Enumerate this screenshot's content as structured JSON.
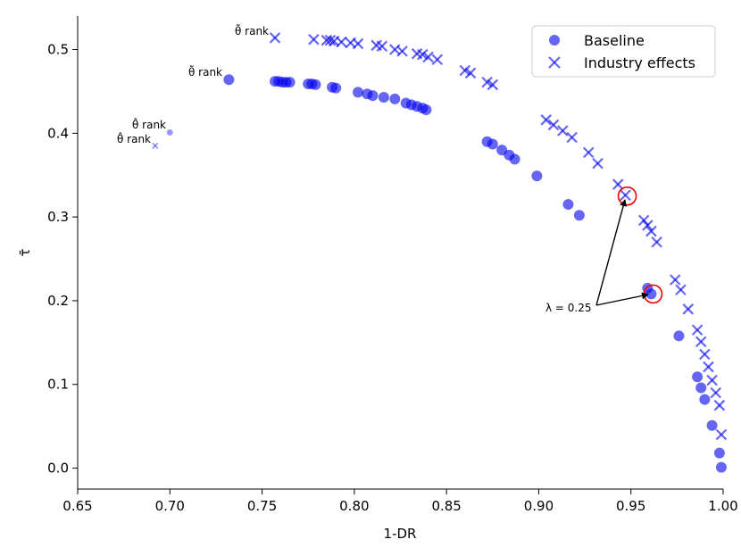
{
  "chart_data": {
    "type": "scatter",
    "xlabel": "1-DR",
    "ylabel": "τ̄",
    "xlim": [
      0.65,
      1.0
    ],
    "ylim": [
      -0.025,
      0.54
    ],
    "xticks": [
      "0.65",
      "0.70",
      "0.75",
      "0.80",
      "0.85",
      "0.90",
      "0.95",
      "1.00"
    ],
    "xtick_values": [
      0.65,
      0.7,
      0.75,
      0.8,
      0.85,
      0.9,
      0.95,
      1.0
    ],
    "yticks": [
      "0.0",
      "0.1",
      "0.2",
      "0.3",
      "0.4",
      "0.5"
    ],
    "ytick_values": [
      0.0,
      0.1,
      0.2,
      0.3,
      0.4,
      0.5
    ],
    "legend_position": "top-right",
    "colors": {
      "marker": "#0000ee",
      "highlight": "#ee0000"
    },
    "series": [
      {
        "name": "Baseline",
        "marker": "circle",
        "points": [
          [
            0.732,
            0.464
          ],
          [
            0.757,
            0.462
          ],
          [
            0.759,
            0.462
          ],
          [
            0.761,
            0.461
          ],
          [
            0.763,
            0.461
          ],
          [
            0.765,
            0.461
          ],
          [
            0.775,
            0.459
          ],
          [
            0.777,
            0.459
          ],
          [
            0.779,
            0.458
          ],
          [
            0.788,
            0.455
          ],
          [
            0.79,
            0.454
          ],
          [
            0.802,
            0.449
          ],
          [
            0.807,
            0.447
          ],
          [
            0.81,
            0.445
          ],
          [
            0.816,
            0.443
          ],
          [
            0.822,
            0.441
          ],
          [
            0.828,
            0.436
          ],
          [
            0.831,
            0.434
          ],
          [
            0.834,
            0.432
          ],
          [
            0.837,
            0.43
          ],
          [
            0.839,
            0.428
          ],
          [
            0.872,
            0.39
          ],
          [
            0.875,
            0.387
          ],
          [
            0.88,
            0.38
          ],
          [
            0.884,
            0.374
          ],
          [
            0.887,
            0.369
          ],
          [
            0.899,
            0.349
          ],
          [
            0.916,
            0.315
          ],
          [
            0.922,
            0.302
          ],
          [
            0.959,
            0.215
          ],
          [
            0.961,
            0.208
          ],
          [
            0.976,
            0.158
          ],
          [
            0.986,
            0.109
          ],
          [
            0.988,
            0.096
          ],
          [
            0.99,
            0.082
          ],
          [
            0.994,
            0.051
          ],
          [
            0.998,
            0.018
          ],
          [
            0.999,
            0.001
          ]
        ]
      },
      {
        "name": "Industry effects",
        "marker": "x",
        "points": [
          [
            0.757,
            0.514
          ],
          [
            0.778,
            0.512
          ],
          [
            0.785,
            0.511
          ],
          [
            0.787,
            0.511
          ],
          [
            0.789,
            0.51
          ],
          [
            0.793,
            0.509
          ],
          [
            0.798,
            0.508
          ],
          [
            0.802,
            0.507
          ],
          [
            0.812,
            0.505
          ],
          [
            0.815,
            0.504
          ],
          [
            0.822,
            0.5
          ],
          [
            0.826,
            0.498
          ],
          [
            0.834,
            0.495
          ],
          [
            0.837,
            0.494
          ],
          [
            0.84,
            0.491
          ],
          [
            0.845,
            0.488
          ],
          [
            0.86,
            0.475
          ],
          [
            0.863,
            0.472
          ],
          [
            0.872,
            0.461
          ],
          [
            0.875,
            0.458
          ],
          [
            0.904,
            0.416
          ],
          [
            0.908,
            0.41
          ],
          [
            0.913,
            0.403
          ],
          [
            0.918,
            0.395
          ],
          [
            0.927,
            0.377
          ],
          [
            0.932,
            0.364
          ],
          [
            0.943,
            0.339
          ],
          [
            0.947,
            0.326
          ],
          [
            0.957,
            0.296
          ],
          [
            0.959,
            0.29
          ],
          [
            0.961,
            0.283
          ],
          [
            0.964,
            0.27
          ],
          [
            0.974,
            0.225
          ],
          [
            0.977,
            0.213
          ],
          [
            0.981,
            0.19
          ],
          [
            0.986,
            0.165
          ],
          [
            0.988,
            0.151
          ],
          [
            0.99,
            0.136
          ],
          [
            0.992,
            0.121
          ],
          [
            0.994,
            0.105
          ],
          [
            0.996,
            0.09
          ],
          [
            0.998,
            0.075
          ],
          [
            0.999,
            0.04
          ]
        ]
      }
    ],
    "extra_points": [
      {
        "marker": "circle",
        "x": 0.7,
        "y": 0.401,
        "size": "small"
      },
      {
        "marker": "x",
        "x": 0.692,
        "y": 0.385,
        "size": "small"
      }
    ],
    "highlighted_points": [
      {
        "x": 0.948,
        "y": 0.325
      },
      {
        "x": 0.962,
        "y": 0.208
      }
    ],
    "annotations": {
      "tilde_rank_ind": "θ̃ rank",
      "tilde_rank_base": "θ̃ rank",
      "hat_rank_1": "θ̂ rank",
      "hat_rank_2": "θ̂ rank",
      "lambda": "λ = 0.25"
    }
  }
}
